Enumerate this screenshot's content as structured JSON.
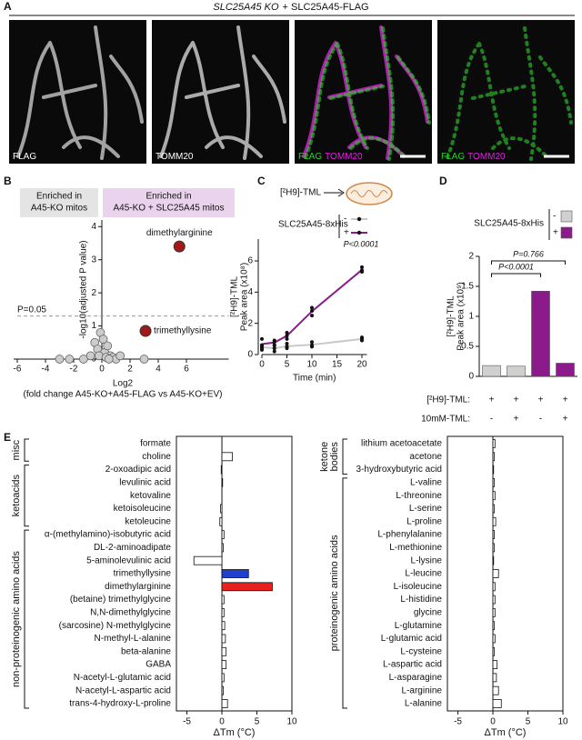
{
  "panels": [
    "A",
    "B",
    "C",
    "D",
    "E"
  ],
  "panel_a": {
    "title": [
      "SLC25A45 KO",
      "+ SLC25A45-FLAG"
    ],
    "images": [
      {
        "labels": [
          "FLAG"
        ],
        "colors": [
          "#ffffff"
        ]
      },
      {
        "labels": [
          "TOMM20"
        ],
        "colors": [
          "#ffffff"
        ]
      },
      {
        "labels": [
          "FLAG",
          "TOMM20"
        ],
        "colors": [
          "#2bd02b",
          "#e020e0"
        ]
      },
      {
        "labels": [
          "FLAG",
          "TOMM20"
        ],
        "colors": [
          "#2bd02b",
          "#e020e0"
        ]
      }
    ]
  },
  "chart_data": [
    {
      "type": "scatter",
      "boxes": [
        {
          "lines": [
            "Enriched in",
            "A45-KO mitos"
          ],
          "color": "#e4e4e4"
        },
        {
          "lines": [
            "Enriched in",
            "A45-KO + SLC25A45 mitos"
          ],
          "color": "#ead3ec"
        }
      ],
      "x": [
        -3,
        -2.3,
        -1.3,
        -0.8,
        -0.5,
        -0.3,
        -0.1,
        0.1,
        0.2,
        0.4,
        0.6,
        0.8,
        1.0,
        1.3,
        3.0,
        -0.2,
        0.3,
        0.5
      ],
      "y": [
        0,
        0,
        0,
        0.1,
        0.5,
        0.3,
        0.8,
        0.6,
        0.2,
        0.4,
        0.1,
        0.05,
        0,
        0.1,
        0,
        0.1,
        0.05,
        0
      ],
      "color": "#cccccc",
      "highlights": {
        "x": [
          5.5,
          3.1
        ],
        "y": [
          3.4,
          0.85
        ],
        "labels": [
          "dimethylarginine",
          "trimethyllysine"
        ],
        "color": "#a31818"
      },
      "threshold": {
        "value": 1.3,
        "label": "P=0.05"
      },
      "xlim": [
        -6,
        9
      ],
      "ylim": [
        0,
        4.2
      ],
      "xticks": [
        -6,
        -4,
        -2,
        0,
        2,
        4,
        6
      ],
      "yticks": [
        0,
        1,
        2,
        3,
        4
      ],
      "xlabel": [
        "Log2",
        "(fold change A45-KO+A45-FLAG vs A45-KO+EV)"
      ],
      "ylabel": "-log10(adjusted P value)"
    },
    {
      "type": "line",
      "schematic_label": "[²H9]-TML",
      "legend_title": "SLC25A45-8xHis",
      "x": [
        0,
        2.5,
        5,
        10,
        20
      ],
      "series": [
        {
          "name": "-",
          "color": "#c8c8c8",
          "values": [
            0.47,
            0.4,
            0.53,
            0.63,
            1.0
          ],
          "replicates": [
            [
              0.6,
              0.5,
              0.3
            ],
            [
              0.6,
              0.4,
              0.2
            ],
            [
              0.7,
              0.5,
              0.4
            ],
            [
              0.8,
              0.6,
              0.5
            ],
            [
              1.1,
              1.0,
              0.9
            ]
          ]
        },
        {
          "name": "+",
          "color": "#8b1a8b",
          "values": [
            0.67,
            0.77,
            1.2,
            2.77,
            5.43
          ],
          "replicates": [
            [
              1.0,
              0.6,
              0.4
            ],
            [
              0.9,
              0.8,
              0.6
            ],
            [
              1.4,
              1.2,
              1.0
            ],
            [
              3.0,
              2.8,
              2.5
            ],
            [
              5.6,
              5.4,
              5.3
            ]
          ]
        }
      ],
      "annotation": "P<0.0001",
      "xlim": [
        0,
        21
      ],
      "ylim": [
        0,
        7.4
      ],
      "xticks": [
        0,
        5,
        10,
        15,
        20
      ],
      "yticks": [
        0,
        2,
        4,
        6
      ],
      "xlabel": "Time (min)",
      "ylabel": [
        "[²H9]-TML",
        "Peak area (x10⁸)"
      ]
    },
    {
      "type": "bar",
      "legend_title": "SLC25A45-8xHis",
      "legend": [
        {
          "name": "-",
          "color": "#d0d0d0"
        },
        {
          "name": "+",
          "color": "#8b1a8b"
        }
      ],
      "values": [
        0.18,
        0.17,
        1.42,
        0.22
      ],
      "colors": [
        "#d0d0d0",
        "#d0d0d0",
        "#8b1a8b",
        "#8b1a8b"
      ],
      "comparisons": [
        "P<0.0001",
        "P=0.766"
      ],
      "conditions": [
        {
          "label": "[²H9]-TML:",
          "values": [
            "+",
            "+",
            "+",
            "+"
          ]
        },
        {
          "label": "10mM-TML:",
          "values": [
            "-",
            "+",
            "-",
            "+"
          ]
        }
      ],
      "ylim": [
        0,
        2
      ],
      "yticks": [
        0,
        0.5,
        1,
        1.5,
        2
      ],
      "ylabel": [
        "[²H9]-TML",
        "Peak area (x10⁹)"
      ]
    },
    {
      "type": "hbar",
      "groups": [
        {
          "label": [
            "misc"
          ],
          "categories": [
            "formate",
            "choline"
          ],
          "values": [
            0.0,
            1.5
          ],
          "colors": [
            "#ffffff",
            "#ffffff"
          ]
        },
        {
          "label": [
            "ketoacids"
          ],
          "categories": [
            "2-oxoadipic acid",
            "levulinic acid",
            "ketovaline",
            "ketoisoleucine",
            "ketoleucine"
          ],
          "values": [
            -0.1,
            0.1,
            0.0,
            -0.2,
            -0.3
          ],
          "colors": [
            "#ffffff",
            "#ffffff",
            "#ffffff",
            "#ffffff",
            "#ffffff"
          ]
        },
        {
          "label": [
            "non-proteinogenic amino acids"
          ],
          "categories": [
            "α-(methylamino)-isobutyric acid",
            "DL-2-aminoadipate",
            "5-aminolevulinic acid",
            "trimethyllysine",
            "dimethylarginine",
            "(betaine) trimethylglycine",
            "N,N-dimethylglycine",
            "(sarcosine) N-methylglycine",
            "N-methyl-L-alanine",
            "beta-alanine",
            "GABA",
            "N-acetyl-L-glutamic acid",
            "N-acetyl-L-aspartic acid",
            "trans-4-hydroxy-L-proline"
          ],
          "values": [
            0.3,
            0.2,
            -4.0,
            3.8,
            7.2,
            0.3,
            0.3,
            0.4,
            0.5,
            0.6,
            0.6,
            0.3,
            0.2,
            0.8
          ],
          "colors": [
            "#ffffff",
            "#ffffff",
            "#ffffff",
            "#1f3fcc",
            "#e8201f",
            "#ffffff",
            "#ffffff",
            "#ffffff",
            "#ffffff",
            "#ffffff",
            "#ffffff",
            "#ffffff",
            "#ffffff",
            "#ffffff"
          ]
        }
      ],
      "xlim": [
        -6.5,
        10
      ],
      "xticks": [
        -5,
        0,
        5,
        10
      ],
      "xlabel": "ΔTm (°C)"
    },
    {
      "type": "hbar",
      "groups": [
        {
          "label": [
            "ketone",
            "bodies"
          ],
          "categories": [
            "lithium acetoacetate",
            "acetone",
            "3-hydroxybutyric acid"
          ],
          "values": [
            0.3,
            0.2,
            0.1
          ],
          "colors": [
            "#ffffff",
            "#ffffff",
            "#ffffff"
          ]
        },
        {
          "label": [
            "proteinogenic amino acids"
          ],
          "categories": [
            "L-valine",
            "L-threonine",
            "L-serine",
            "L-proline",
            "L-phenylalanine",
            "L-methionine",
            "L-lysine",
            "L-leucine",
            "L-isoleucine",
            "L-histidine",
            "glycine",
            "L-glutamine",
            "L-glutamic acid",
            "L-cysteine",
            "L-aspartic acid",
            "L-asparagine",
            "L-arginine",
            "L-alanine"
          ],
          "values": [
            0.2,
            0.3,
            0.2,
            0.4,
            0.2,
            0.2,
            0.1,
            0.8,
            0.3,
            0.3,
            0.3,
            0.2,
            0.3,
            0.2,
            0.6,
            0.5,
            0.8,
            1.2
          ],
          "colors": [
            "#ffffff",
            "#ffffff",
            "#ffffff",
            "#ffffff",
            "#ffffff",
            "#ffffff",
            "#ffffff",
            "#ffffff",
            "#ffffff",
            "#ffffff",
            "#ffffff",
            "#ffffff",
            "#ffffff",
            "#ffffff",
            "#ffffff",
            "#ffffff",
            "#ffffff",
            "#ffffff"
          ]
        }
      ],
      "xlim": [
        -6.5,
        10
      ],
      "xticks": [
        -5,
        0,
        5,
        10
      ],
      "xlabel": "ΔTm (°C)"
    }
  ]
}
